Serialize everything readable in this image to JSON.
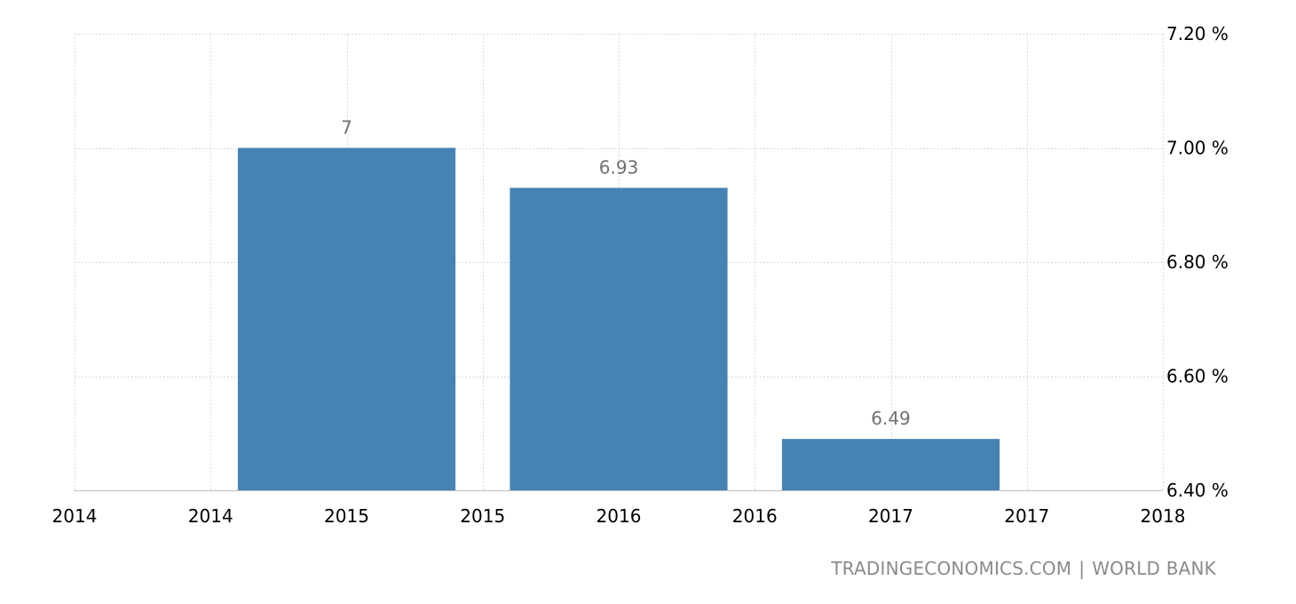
{
  "chart_data": {
    "type": "bar",
    "categories": [
      "2015",
      "2016",
      "2017"
    ],
    "values": [
      7.0,
      6.93,
      6.49
    ],
    "value_labels": [
      "7",
      "6.93",
      "6.49"
    ],
    "bar_color": "#4682b4",
    "title": "",
    "xlabel": "",
    "ylabel": "",
    "ylim": [
      6.4,
      7.2
    ],
    "y_ticks": [
      {
        "value": 7.2,
        "label": "7.20 %"
      },
      {
        "value": 7.0,
        "label": "7.00 %"
      },
      {
        "value": 6.8,
        "label": "6.80 %"
      },
      {
        "value": 6.6,
        "label": "6.60 %"
      },
      {
        "value": 6.4,
        "label": "6.40 %"
      }
    ],
    "x_tick_labels": [
      "2014",
      "2014",
      "2015",
      "2015",
      "2016",
      "2016",
      "2017",
      "2017",
      "2018"
    ],
    "grid": true,
    "y_axis_position": "right"
  },
  "source": {
    "site": "TRADINGECONOMICS.COM",
    "separator": "|",
    "provider": "WORLD BANK"
  }
}
